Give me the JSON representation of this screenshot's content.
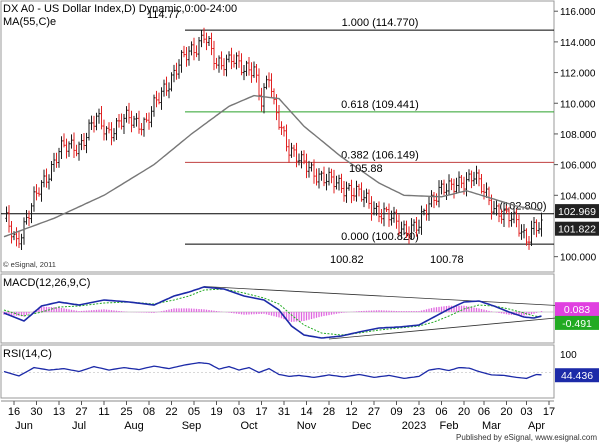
{
  "header": {
    "title": "DX A0 - US Dollar Index,D) Dynamic,0:00-24:00",
    "ma_label": "MA(55,C)e",
    "credit": "© eSignal, 2011",
    "footer": "Published by eSignal, www.esignal.com"
  },
  "colors": {
    "up": "#1a1a1a",
    "down": "#e02020",
    "ma": "#777777",
    "fib_top": "#000000",
    "fib_618": "#2aa02a",
    "fib_382": "#c04040",
    "support": "#000000",
    "macd_line": "#1c2aa8",
    "signal_line": "#22aa22",
    "histogram": "#e066e0",
    "rsi_line": "#1c2aa8",
    "price_tag_bg": "#222222",
    "macd_pos_tag": "#e040e0",
    "macd_neg_tag": "#22aa22",
    "rsi_tag": "#1c2aa8"
  },
  "chart_data": [
    {
      "type": "candlestick",
      "title": "DX A0 - US Dollar Index,D) Dynamic,0:00-24:00",
      "ylim": [
        99.0,
        116.6
      ],
      "yticks": [
        "116.000",
        "114.000",
        "112.000",
        "110.000",
        "108.000",
        "106.000",
        "104.000",
        "100.000"
      ],
      "ytick_values": [
        116,
        114,
        112,
        110,
        108,
        106,
        104,
        100
      ],
      "fib_levels": [
        {
          "label": "1.000 (114.770)",
          "value": 114.77,
          "color_key": "fib_top"
        },
        {
          "label": "0.618 (109.441)",
          "value": 109.441,
          "color_key": "fib_618"
        },
        {
          "label": "0.382 (106.149)",
          "value": 106.149,
          "color_key": "fib_382"
        },
        {
          "label": "0.000 (100.820)",
          "value": 100.82,
          "color_key": "fib_top"
        }
      ],
      "horizontal_lines": [
        {
          "label": "(102.800)",
          "value": 102.8,
          "color_key": "support"
        }
      ],
      "annotations": [
        "114.77",
        "105.88",
        "100.82",
        "100.78"
      ],
      "price_tags": [
        {
          "text": "102.969",
          "value": 102.969
        },
        {
          "text": "101.822",
          "value": 101.822
        }
      ],
      "close_anchors": [
        [
          0,
          102.5
        ],
        [
          5,
          101.0
        ],
        [
          14,
          104.3
        ],
        [
          22,
          106.9
        ],
        [
          30,
          107.3
        ],
        [
          37,
          108.9
        ],
        [
          42,
          108.2
        ],
        [
          50,
          109.0
        ],
        [
          57,
          108.7
        ],
        [
          64,
          111.0
        ],
        [
          70,
          112.5
        ],
        [
          77,
          113.8
        ],
        [
          80,
          114.6
        ],
        [
          85,
          112.3
        ],
        [
          91,
          113.2
        ],
        [
          96,
          111.9
        ],
        [
          100,
          112.4
        ],
        [
          103,
          110.3
        ],
        [
          106,
          111.7
        ],
        [
          108,
          109.6
        ],
        [
          114,
          107.2
        ],
        [
          119,
          106.0
        ],
        [
          125,
          105.5
        ],
        [
          131,
          104.8
        ],
        [
          138,
          104.5
        ],
        [
          145,
          103.6
        ],
        [
          152,
          102.8
        ],
        [
          159,
          101.9
        ],
        [
          166,
          101.9
        ],
        [
          170,
          103.5
        ],
        [
          174,
          104.5
        ],
        [
          179,
          104.3
        ],
        [
          183,
          105.0
        ],
        [
          188,
          105.3
        ],
        [
          190,
          104.6
        ],
        [
          196,
          103.3
        ],
        [
          201,
          102.5
        ],
        [
          205,
          102.3
        ],
        [
          209,
          101.3
        ],
        [
          212,
          101.8
        ],
        [
          215,
          101.8
        ]
      ],
      "ma": [
        [
          0,
          101.3
        ],
        [
          20,
          102.5
        ],
        [
          40,
          104.0
        ],
        [
          60,
          106.0
        ],
        [
          75,
          108.0
        ],
        [
          90,
          109.8
        ],
        [
          100,
          110.5
        ],
        [
          110,
          110.3
        ],
        [
          120,
          108.5
        ],
        [
          135,
          106.5
        ],
        [
          150,
          104.8
        ],
        [
          160,
          104.0
        ],
        [
          175,
          103.9
        ],
        [
          185,
          104.3
        ],
        [
          195,
          103.8
        ],
        [
          205,
          103.3
        ],
        [
          215,
          103.0
        ]
      ]
    },
    {
      "type": "line",
      "name": "MACD(12,26,9,C)",
      "ylim": [
        -3.0,
        3.6
      ],
      "tags": [
        {
          "text": "0.083",
          "value": 0.083
        },
        {
          "text": "-0.491",
          "value": -0.491
        }
      ],
      "macd_line": [
        [
          0,
          -0.1
        ],
        [
          8,
          -0.9
        ],
        [
          15,
          0.6
        ],
        [
          22,
          1.0
        ],
        [
          30,
          0.7
        ],
        [
          40,
          1.2
        ],
        [
          50,
          1.0
        ],
        [
          60,
          0.7
        ],
        [
          68,
          1.6
        ],
        [
          74,
          2.0
        ],
        [
          80,
          2.5
        ],
        [
          88,
          2.3
        ],
        [
          96,
          1.6
        ],
        [
          104,
          1.2
        ],
        [
          110,
          0.2
        ],
        [
          115,
          -1.4
        ],
        [
          120,
          -2.3
        ],
        [
          127,
          -2.6
        ],
        [
          135,
          -2.4
        ],
        [
          142,
          -2.0
        ],
        [
          150,
          -1.6
        ],
        [
          158,
          -1.5
        ],
        [
          166,
          -1.3
        ],
        [
          172,
          -0.5
        ],
        [
          178,
          0.3
        ],
        [
          184,
          1.0
        ],
        [
          190,
          1.1
        ],
        [
          196,
          0.6
        ],
        [
          202,
          0.0
        ],
        [
          208,
          -0.5
        ],
        [
          212,
          -0.6
        ],
        [
          215,
          -0.4
        ]
      ],
      "signal_line": [
        [
          0,
          0.2
        ],
        [
          8,
          -0.4
        ],
        [
          15,
          0.0
        ],
        [
          22,
          0.5
        ],
        [
          30,
          0.6
        ],
        [
          40,
          0.9
        ],
        [
          50,
          1.0
        ],
        [
          60,
          0.8
        ],
        [
          68,
          1.2
        ],
        [
          74,
          1.6
        ],
        [
          80,
          2.2
        ],
        [
          88,
          2.3
        ],
        [
          96,
          1.9
        ],
        [
          104,
          1.4
        ],
        [
          110,
          0.8
        ],
        [
          115,
          -0.3
        ],
        [
          120,
          -1.3
        ],
        [
          127,
          -2.1
        ],
        [
          135,
          -2.3
        ],
        [
          142,
          -2.1
        ],
        [
          150,
          -1.8
        ],
        [
          158,
          -1.6
        ],
        [
          166,
          -1.4
        ],
        [
          172,
          -1.0
        ],
        [
          178,
          -0.4
        ],
        [
          184,
          0.3
        ],
        [
          190,
          0.7
        ],
        [
          196,
          0.6
        ],
        [
          202,
          0.3
        ],
        [
          208,
          -0.1
        ],
        [
          212,
          -0.4
        ],
        [
          215,
          -0.5
        ]
      ],
      "trendlines": [
        {
          "from": [
            80,
            2.55
          ],
          "to": [
            225,
            0.6
          ]
        },
        {
          "from": [
            130,
            -2.7
          ],
          "to": [
            225,
            -0.5
          ]
        }
      ]
    },
    {
      "type": "line",
      "name": "RSI(14,C)",
      "ylim": [
        0,
        100
      ],
      "yticks": [
        "100",
        "0"
      ],
      "ytick_values": [
        100,
        0
      ],
      "tags": [
        {
          "text": "44.436",
          "value": 44.436
        }
      ],
      "rsi": [
        [
          0,
          52
        ],
        [
          6,
          43
        ],
        [
          12,
          60
        ],
        [
          18,
          55
        ],
        [
          24,
          58
        ],
        [
          30,
          52
        ],
        [
          36,
          62
        ],
        [
          42,
          55
        ],
        [
          48,
          60
        ],
        [
          54,
          56
        ],
        [
          60,
          63
        ],
        [
          66,
          58
        ],
        [
          72,
          65
        ],
        [
          78,
          70
        ],
        [
          82,
          68
        ],
        [
          86,
          57
        ],
        [
          90,
          62
        ],
        [
          94,
          55
        ],
        [
          98,
          60
        ],
        [
          102,
          50
        ],
        [
          106,
          58
        ],
        [
          110,
          46
        ],
        [
          114,
          42
        ],
        [
          118,
          44
        ],
        [
          124,
          40
        ],
        [
          130,
          45
        ],
        [
          136,
          41
        ],
        [
          142,
          46
        ],
        [
          148,
          40
        ],
        [
          154,
          44
        ],
        [
          160,
          38
        ],
        [
          166,
          42
        ],
        [
          170,
          55
        ],
        [
          174,
          58
        ],
        [
          178,
          54
        ],
        [
          182,
          60
        ],
        [
          186,
          59
        ],
        [
          190,
          52
        ],
        [
          195,
          45
        ],
        [
          200,
          44
        ],
        [
          205,
          40
        ],
        [
          209,
          38
        ],
        [
          213,
          46
        ],
        [
          215,
          45
        ]
      ]
    }
  ],
  "x_axis": {
    "day_labels": [
      {
        "text": "16",
        "i": 4
      },
      {
        "text": "30",
        "i": 13
      },
      {
        "text": "13",
        "i": 22
      },
      {
        "text": "27",
        "i": 31
      },
      {
        "text": "11",
        "i": 40
      },
      {
        "text": "25",
        "i": 49
      },
      {
        "text": "08",
        "i": 58
      },
      {
        "text": "22",
        "i": 67
      },
      {
        "text": "05",
        "i": 76
      },
      {
        "text": "19",
        "i": 85
      },
      {
        "text": "03",
        "i": 94
      },
      {
        "text": "17",
        "i": 103
      },
      {
        "text": "31",
        "i": 112
      },
      {
        "text": "14",
        "i": 121
      },
      {
        "text": "28",
        "i": 130
      },
      {
        "text": "12",
        "i": 139
      },
      {
        "text": "27",
        "i": 148
      },
      {
        "text": "09",
        "i": 157
      },
      {
        "text": "23",
        "i": 166
      },
      {
        "text": "06",
        "i": 175
      },
      {
        "text": "20",
        "i": 184
      },
      {
        "text": "06",
        "i": 192
      },
      {
        "text": "20",
        "i": 201
      },
      {
        "text": "03",
        "i": 209
      },
      {
        "text": "17",
        "i": 218
      }
    ],
    "month_labels": [
      {
        "text": "Jun",
        "i": 8
      },
      {
        "text": "Jul",
        "i": 30
      },
      {
        "text": "Aug",
        "i": 52
      },
      {
        "text": "Sep",
        "i": 75
      },
      {
        "text": "Oct",
        "i": 98
      },
      {
        "text": "Nov",
        "i": 121
      },
      {
        "text": "Dec",
        "i": 143
      },
      {
        "text": "2023",
        "i": 164
      },
      {
        "text": "Feb",
        "i": 178
      },
      {
        "text": "Mar",
        "i": 195
      },
      {
        "text": "Apr",
        "i": 213
      }
    ]
  }
}
